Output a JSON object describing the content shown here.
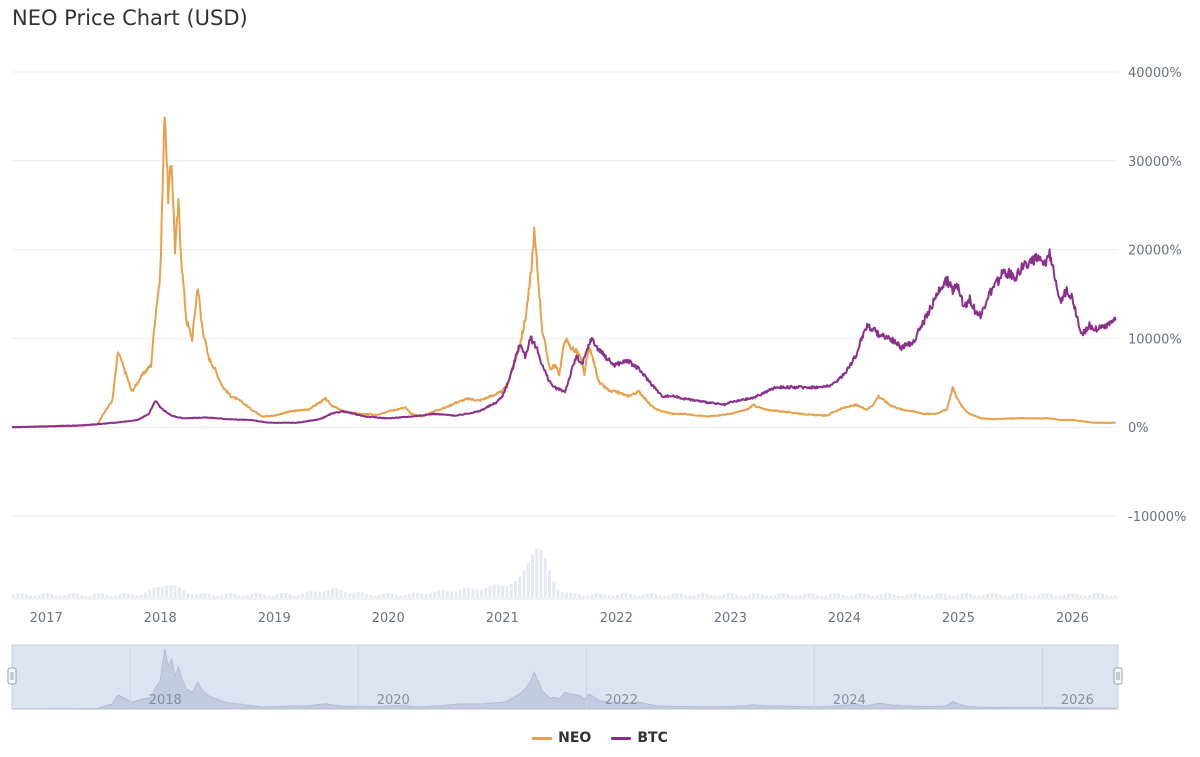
{
  "title": "NEO Price Chart (USD)",
  "chart_data": {
    "type": "line",
    "title": "NEO Price Chart (USD)",
    "xlabel": "",
    "ylabel": "",
    "xlim": [
      2016.7,
      2026.4
    ],
    "ylim": [
      -10000,
      40000
    ],
    "y_unit": "%",
    "y_tick_labels": [
      "40000%",
      "30000%",
      "20000%",
      "10000%",
      "0%",
      "-10000%"
    ],
    "y_tick_values": [
      40000,
      30000,
      20000,
      10000,
      0,
      -10000
    ],
    "x_tick_labels": [
      "2017",
      "2018",
      "2019",
      "2020",
      "2021",
      "2022",
      "2023",
      "2024",
      "2025",
      "2026"
    ],
    "x_tick_values": [
      2017,
      2018,
      2019,
      2020,
      2021,
      2022,
      2023,
      2024,
      2025,
      2026
    ],
    "grid": true,
    "legend": "bottom-center",
    "series": [
      {
        "name": "NEO",
        "color": "#e8a04a",
        "x": [
          2016.7,
          2017.2,
          2017.45,
          2017.5,
          2017.58,
          2017.63,
          2017.7,
          2017.75,
          2017.85,
          2017.92,
          2017.96,
          2018.0,
          2018.04,
          2018.07,
          2018.1,
          2018.13,
          2018.16,
          2018.19,
          2018.23,
          2018.28,
          2018.33,
          2018.36,
          2018.42,
          2018.48,
          2018.55,
          2018.62,
          2018.7,
          2018.8,
          2018.9,
          2019.0,
          2019.15,
          2019.3,
          2019.45,
          2019.5,
          2019.6,
          2019.75,
          2019.9,
          2020.0,
          2020.15,
          2020.2,
          2020.3,
          2020.4,
          2020.5,
          2020.6,
          2020.7,
          2020.8,
          2020.9,
          2021.0,
          2021.05,
          2021.1,
          2021.15,
          2021.2,
          2021.25,
          2021.28,
          2021.32,
          2021.35,
          2021.38,
          2021.42,
          2021.46,
          2021.5,
          2021.55,
          2021.6,
          2021.65,
          2021.68,
          2021.72,
          2021.76,
          2021.8,
          2021.85,
          2021.9,
          2021.95,
          2022.0,
          2022.1,
          2022.2,
          2022.3,
          2022.35,
          2022.4,
          2022.5,
          2022.6,
          2022.8,
          2023.0,
          2023.15,
          2023.2,
          2023.3,
          2023.5,
          2023.7,
          2023.85,
          2023.9,
          2024.0,
          2024.1,
          2024.2,
          2024.25,
          2024.3,
          2024.4,
          2024.5,
          2024.6,
          2024.7,
          2024.8,
          2024.9,
          2024.95,
          2025.0,
          2025.05,
          2025.1,
          2025.2,
          2025.3,
          2025.5,
          2025.7,
          2025.8,
          2025.9,
          2026.0,
          2026.2,
          2026.38
        ],
        "values": [
          0,
          100,
          300,
          1500,
          3000,
          8500,
          6000,
          4000,
          6000,
          7000,
          13000,
          17000,
          36000,
          26000,
          30000,
          20000,
          25000,
          18000,
          12000,
          10000,
          16000,
          12000,
          8000,
          6500,
          4500,
          3500,
          3000,
          2000,
          1200,
          1300,
          1800,
          2000,
          3200,
          2500,
          1800,
          1500,
          1400,
          1800,
          2200,
          1500,
          1200,
          1800,
          2200,
          2800,
          3200,
          3000,
          3500,
          4000,
          5000,
          7000,
          9000,
          12000,
          17000,
          22000,
          16000,
          11000,
          9000,
          6500,
          7000,
          6000,
          10000,
          9000,
          8500,
          8000,
          6000,
          9000,
          7500,
          5000,
          4500,
          4000,
          4000,
          3500,
          4000,
          2500,
          2000,
          1800,
          1500,
          1500,
          1200,
          1500,
          2000,
          2500,
          2000,
          1700,
          1400,
          1300,
          1700,
          2200,
          2500,
          2000,
          2500,
          3500,
          2500,
          2000,
          1800,
          1500,
          1500,
          2000,
          4500,
          3000,
          2000,
          1500,
          1000,
          900,
          1000,
          1000,
          1000,
          800,
          800,
          500,
          500
        ]
      },
      {
        "name": "BTC",
        "color": "#8b2f8c",
        "x": [
          2016.7,
          2017.3,
          2017.6,
          2017.8,
          2017.9,
          2017.96,
          2018.0,
          2018.1,
          2018.2,
          2018.4,
          2018.6,
          2018.8,
          2018.95,
          2019.2,
          2019.4,
          2019.5,
          2019.6,
          2019.8,
          2020.0,
          2020.2,
          2020.4,
          2020.6,
          2020.8,
          2020.95,
          2021.0,
          2021.05,
          2021.1,
          2021.15,
          2021.2,
          2021.25,
          2021.3,
          2021.35,
          2021.4,
          2021.45,
          2021.55,
          2021.6,
          2021.65,
          2021.7,
          2021.78,
          2021.83,
          2021.9,
          2021.98,
          2022.1,
          2022.2,
          2022.3,
          2022.4,
          2022.5,
          2022.6,
          2022.8,
          2022.95,
          2023.0,
          2023.2,
          2023.4,
          2023.6,
          2023.8,
          2023.9,
          2024.0,
          2024.1,
          2024.15,
          2024.2,
          2024.3,
          2024.4,
          2024.5,
          2024.6,
          2024.7,
          2024.8,
          2024.85,
          2024.9,
          2024.95,
          2025.0,
          2025.05,
          2025.1,
          2025.15,
          2025.2,
          2025.25,
          2025.3,
          2025.4,
          2025.5,
          2025.6,
          2025.7,
          2025.75,
          2025.8,
          2025.85,
          2025.9,
          2025.95,
          2026.0,
          2026.08,
          2026.12,
          2026.15,
          2026.2,
          2026.3,
          2026.38
        ],
        "values": [
          0,
          200,
          500,
          800,
          1500,
          3000,
          2200,
          1300,
          1000,
          1100,
          900,
          800,
          500,
          500,
          900,
          1500,
          1800,
          1200,
          1000,
          1200,
          1500,
          1300,
          1800,
          2800,
          3500,
          5000,
          7000,
          9500,
          8000,
          10000,
          9000,
          7000,
          5500,
          4500,
          4000,
          6000,
          8000,
          7000,
          10000,
          9000,
          8000,
          7000,
          7500,
          6500,
          5000,
          3500,
          3500,
          3200,
          2800,
          2500,
          2800,
          3300,
          4500,
          4500,
          4500,
          4800,
          6000,
          8000,
          10000,
          11500,
          10500,
          10000,
          9000,
          9500,
          12000,
          14500,
          16000,
          16500,
          15500,
          16000,
          13500,
          14500,
          13000,
          12500,
          14500,
          15500,
          17500,
          17000,
          18500,
          19000,
          18000,
          19500,
          17000,
          14000,
          15500,
          14500,
          10500,
          11000,
          11500,
          11000,
          11500,
          12000
        ]
      }
    ],
    "navigator": {
      "x_tick_labels": [
        "2018",
        "2020",
        "2022",
        "2024",
        "2026"
      ],
      "x_tick_values": [
        2018,
        2020,
        2022,
        2024,
        2026
      ]
    }
  },
  "legend": {
    "items": [
      {
        "label": "NEO",
        "color": "#e8a04a"
      },
      {
        "label": "BTC",
        "color": "#8b2f8c"
      }
    ]
  }
}
